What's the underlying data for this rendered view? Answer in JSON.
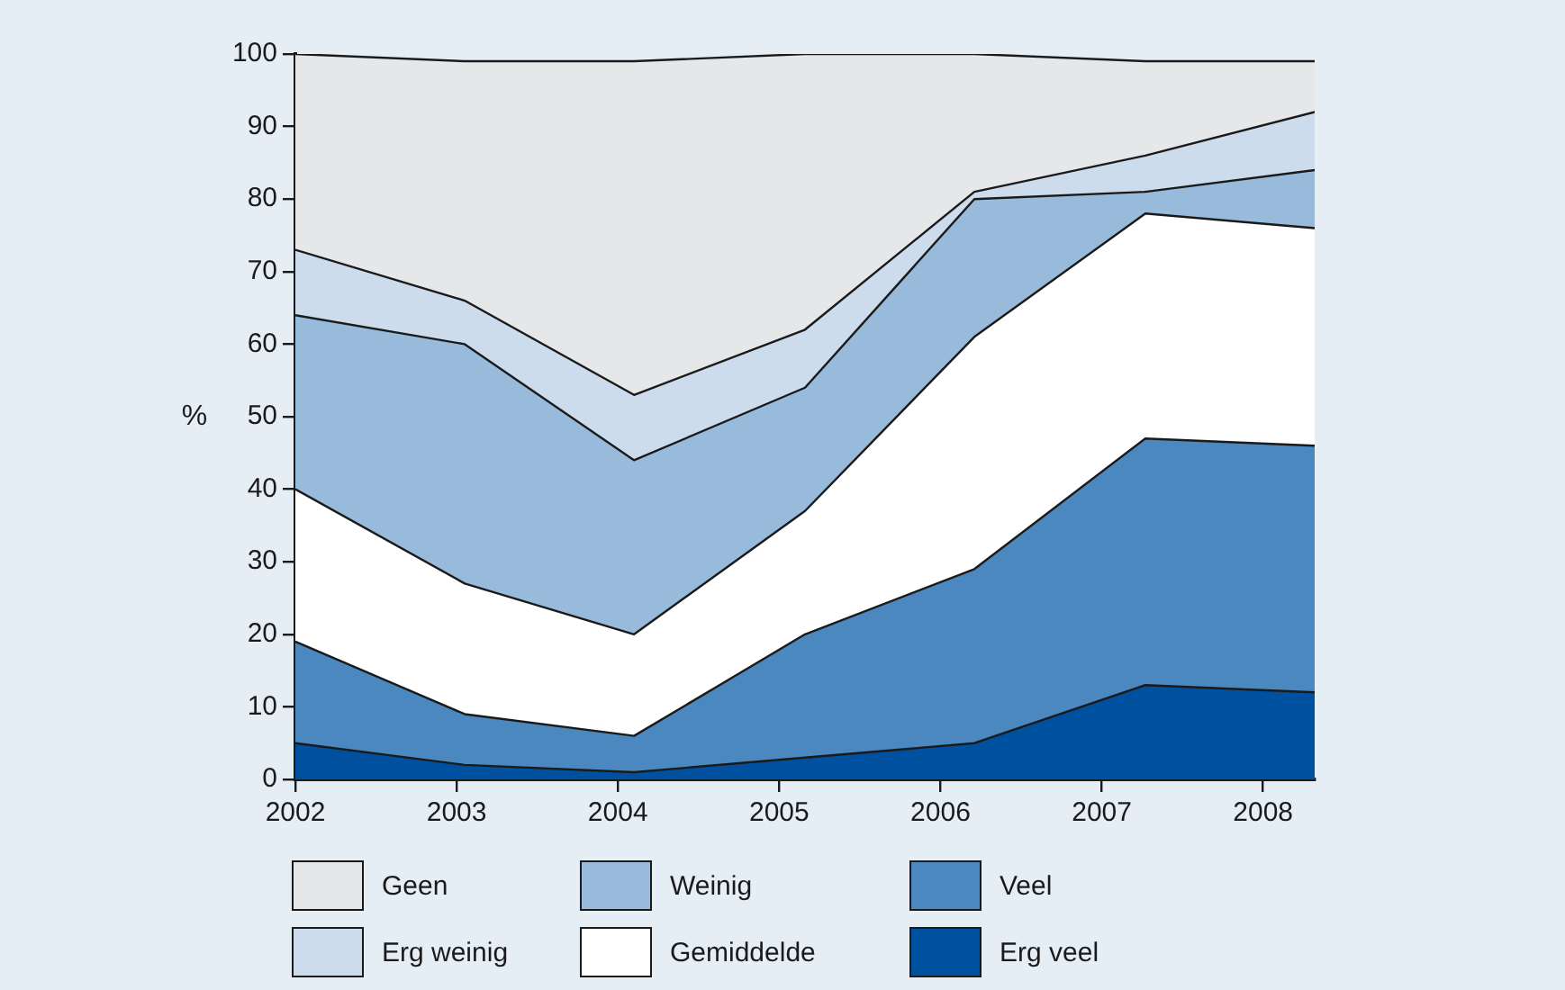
{
  "chart_data": {
    "type": "area",
    "stacked": true,
    "ylabel": "%",
    "x": [
      2002,
      2003.05,
      2004.1,
      2005.16,
      2006.21,
      2007.27,
      2008.32
    ],
    "xlim": [
      2002,
      2008.32
    ],
    "xticks": [
      2002,
      2003,
      2004,
      2005,
      2006,
      2007,
      2008
    ],
    "ylim": [
      0,
      100
    ],
    "yticks": [
      0,
      10,
      20,
      30,
      40,
      50,
      60,
      70,
      80,
      90,
      100
    ],
    "grid": false,
    "legend": "bottom",
    "series": [
      {
        "name": "Erg veel",
        "color": "#0050a0",
        "values": [
          5,
          2,
          1,
          3,
          5,
          13,
          12
        ]
      },
      {
        "name": "Veel",
        "color": "#4c88c0",
        "values": [
          14,
          7,
          5,
          17,
          24,
          34,
          34
        ]
      },
      {
        "name": "Gemiddelde",
        "color": "#ffffff",
        "values": [
          21,
          18,
          14,
          17,
          32,
          31,
          30
        ]
      },
      {
        "name": "Weinig",
        "color": "#98bbdc",
        "values": [
          24,
          33,
          24,
          17,
          19,
          3,
          8
        ]
      },
      {
        "name": "Erg weinig",
        "color": "#ccdcec",
        "values": [
          9,
          6,
          9,
          8,
          1,
          5,
          8
        ]
      },
      {
        "name": "Geen",
        "color": "#e6e7e9",
        "values": [
          27,
          33,
          46,
          38,
          19,
          13,
          7
        ]
      }
    ]
  }
}
